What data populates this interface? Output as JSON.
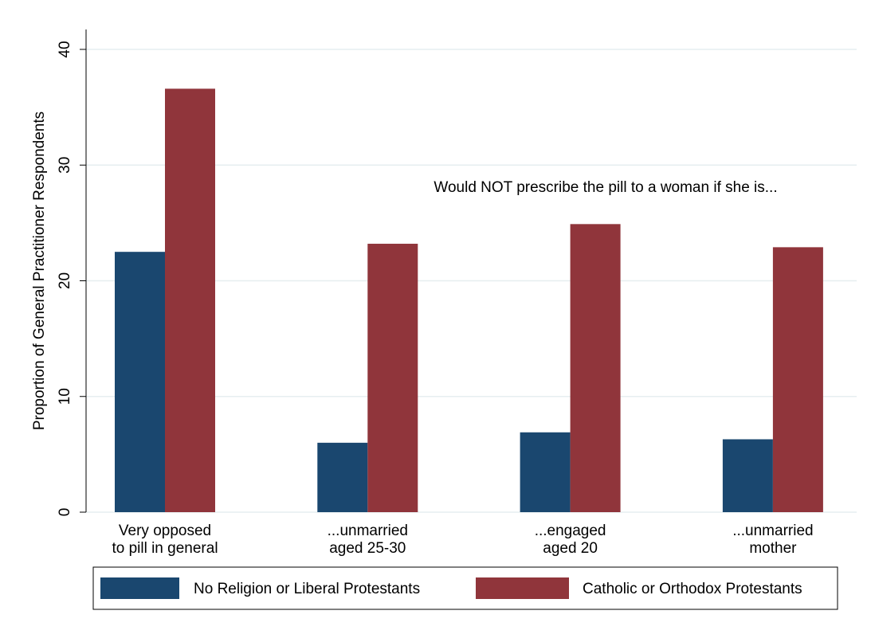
{
  "chart_data": {
    "type": "bar",
    "annotation": "Would NOT prescribe the pill to a woman if she is...",
    "y_label": "Proportion of General Practitioner Respondents",
    "categories": [
      [
        "Very opposed",
        "to pill in general"
      ],
      [
        "...unmarried",
        "aged 25-30"
      ],
      [
        "...engaged",
        "aged 20"
      ],
      [
        "...unmarried",
        "mother"
      ]
    ],
    "series": [
      {
        "name": "No Religion or Liberal Protestants",
        "color": "#1a476f",
        "values": [
          22.5,
          6.0,
          6.9,
          6.3
        ]
      },
      {
        "name": "Catholic or Orthodox Protestants",
        "color": "#90353b",
        "values": [
          36.6,
          23.2,
          24.9,
          22.9
        ]
      }
    ],
    "ylim": [
      0,
      40
    ],
    "yticks": [
      0,
      10,
      20,
      30,
      40
    ],
    "grid": true,
    "legend": "bottom"
  }
}
